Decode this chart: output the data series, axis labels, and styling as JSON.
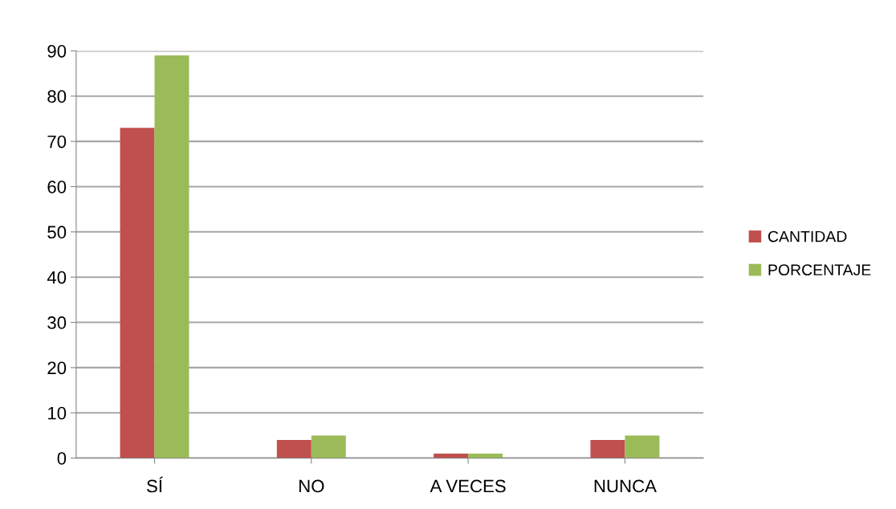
{
  "chart_data": {
    "type": "bar",
    "categories": [
      "SÍ",
      "NO",
      "A VECES",
      "NUNCA"
    ],
    "series": [
      {
        "name": "CANTIDAD",
        "color": "#c0504d",
        "values": [
          73,
          4,
          1,
          4
        ]
      },
      {
        "name": "PORCENTAJE",
        "color": "#9bbb59",
        "values": [
          89,
          5,
          1,
          5
        ]
      }
    ],
    "ylim": [
      0,
      90
    ],
    "yticks": [
      0,
      10,
      20,
      30,
      40,
      50,
      60,
      70,
      80,
      90
    ],
    "grid": "y",
    "legend": "right"
  }
}
